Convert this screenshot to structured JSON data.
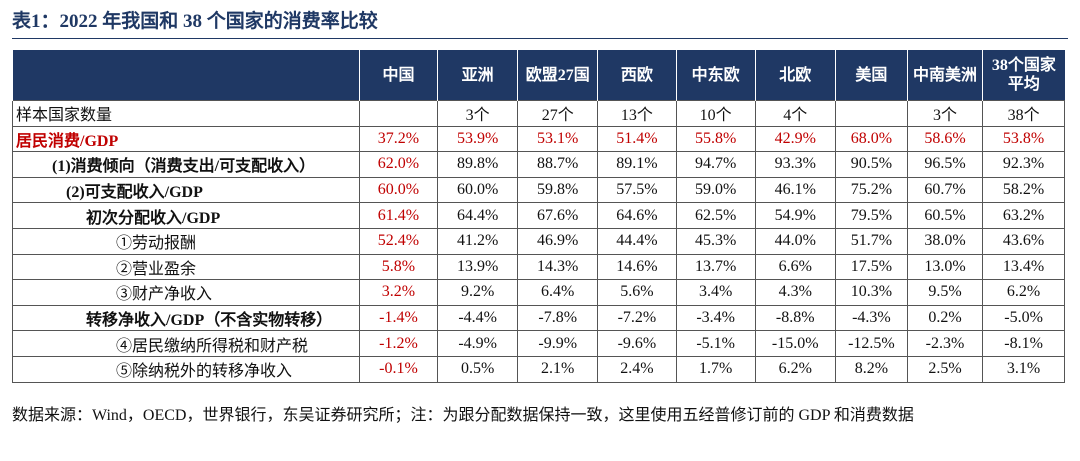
{
  "header": {
    "title": "表1：2022 年我国和 38 个国家的消费率比较"
  },
  "table": {
    "columns": [
      "中国",
      "亚洲",
      "欧盟27国",
      "西欧",
      "中东欧",
      "北欧",
      "美国",
      "中南美洲",
      "38个国家平均"
    ],
    "rows": [
      [
        "样本国家数量",
        null,
        "3个",
        "27个",
        "13个",
        "10个",
        "4个",
        null,
        "3个",
        "38个"
      ],
      [
        "居民消费/GDP",
        "37.2%",
        "53.9%",
        "53.1%",
        "51.4%",
        "55.8%",
        "42.9%",
        "68.0%",
        "58.6%",
        "53.8%"
      ],
      [
        "(1)消费倾向（消费支出/可支配收入）",
        "62.0%",
        "89.8%",
        "88.7%",
        "89.1%",
        "94.7%",
        "93.3%",
        "90.5%",
        "96.5%",
        "92.3%"
      ],
      [
        "(2)可支配收入/GDP",
        "60.0%",
        "60.0%",
        "59.8%",
        "57.5%",
        "59.0%",
        "46.1%",
        "75.2%",
        "60.7%",
        "58.2%"
      ],
      [
        "初次分配收入/GDP",
        "61.4%",
        "64.4%",
        "67.6%",
        "64.6%",
        "62.5%",
        "54.9%",
        "79.5%",
        "60.5%",
        "63.2%"
      ],
      [
        "①劳动报酬",
        "52.4%",
        "41.2%",
        "46.9%",
        "44.4%",
        "45.3%",
        "44.0%",
        "51.7%",
        "38.0%",
        "43.6%"
      ],
      [
        "②营业盈余",
        "5.8%",
        "13.9%",
        "14.3%",
        "14.6%",
        "13.7%",
        "6.6%",
        "17.5%",
        "13.0%",
        "13.4%"
      ],
      [
        "③财产净收入",
        "3.2%",
        "9.2%",
        "6.4%",
        "5.6%",
        "3.4%",
        "4.3%",
        "10.3%",
        "9.5%",
        "6.2%"
      ],
      [
        "转移净收入/GDP（不含实物转移）",
        "-1.4%",
        "-4.4%",
        "-7.8%",
        "-7.2%",
        "-3.4%",
        "-8.8%",
        "-4.3%",
        "0.2%",
        "-5.0%"
      ],
      [
        "④居民缴纳所得税和财产税",
        "-1.2%",
        "-4.9%",
        "-9.9%",
        "-9.6%",
        "-5.1%",
        "-15.0%",
        "-12.5%",
        "-2.3%",
        "-8.1%"
      ],
      [
        "⑤除纳税外的转移净收入",
        "-0.1%",
        "0.5%",
        "2.1%",
        "2.4%",
        "1.7%",
        "6.2%",
        "8.2%",
        "2.5%",
        "3.1%"
      ]
    ]
  },
  "footer": {
    "source": "数据来源：Wind，OECD，世界银行，东吴证券研究所；注：为跟分配数据保持一致，这里使用五经普修订前的 GDP 和消费数据"
  }
}
